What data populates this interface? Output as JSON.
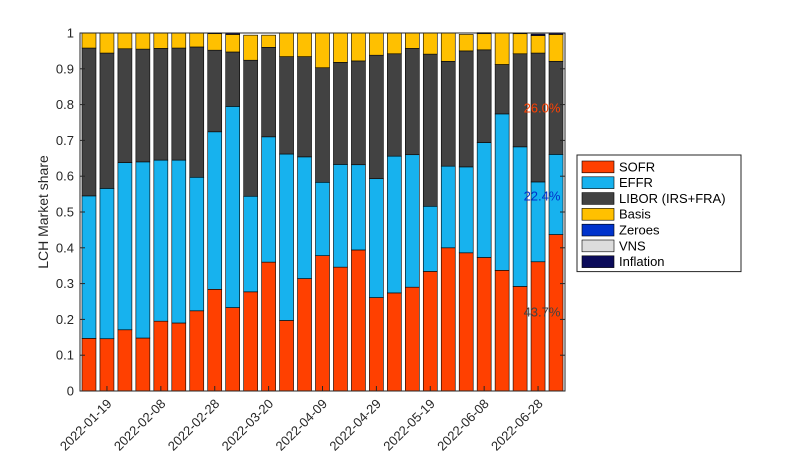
{
  "chart_data": {
    "type": "bar",
    "stacked": true,
    "ylabel": "LCH Market share",
    "ylim": [
      0,
      1
    ],
    "yticks": [
      0,
      0.1,
      0.2,
      0.3,
      0.4,
      0.5,
      0.6,
      0.7,
      0.8,
      0.9,
      1
    ],
    "ytick_labels": [
      "0",
      "0.1",
      "0.2",
      "0.3",
      "0.4",
      "0.5",
      "0.6",
      "0.7",
      "0.8",
      "0.9",
      "1"
    ],
    "xtick_labels": [
      {
        "index": 1,
        "label": "2022-01-19"
      },
      {
        "index": 4,
        "label": "2022-02-08"
      },
      {
        "index": 7,
        "label": "2022-02-28"
      },
      {
        "index": 10,
        "label": "2022-03-20"
      },
      {
        "index": 13,
        "label": "2022-04-09"
      },
      {
        "index": 16,
        "label": "2022-04-29"
      },
      {
        "index": 19,
        "label": "2022-05-19"
      },
      {
        "index": 22,
        "label": "2022-06-08"
      },
      {
        "index": 25,
        "label": "2022-06-28"
      }
    ],
    "bar_count": 27,
    "legend_position": "right",
    "series": [
      {
        "name": "SOFR",
        "color": "#ff4000",
        "values": [
          0.147,
          0.146,
          0.171,
          0.148,
          0.195,
          0.19,
          0.224,
          0.284,
          0.233,
          0.277,
          0.36,
          0.197,
          0.314,
          0.378,
          0.346,
          0.394,
          0.261,
          0.274,
          0.29,
          0.334,
          0.4,
          0.386,
          0.373,
          0.337,
          0.292,
          0.361,
          0.437
        ]
      },
      {
        "name": "EFFR",
        "color": "#17b2ee",
        "values": [
          0.398,
          0.42,
          0.467,
          0.492,
          0.45,
          0.455,
          0.373,
          0.44,
          0.562,
          0.267,
          0.35,
          0.465,
          0.34,
          0.205,
          0.287,
          0.238,
          0.332,
          0.382,
          0.37,
          0.182,
          0.228,
          0.24,
          0.321,
          0.437,
          0.39,
          0.223,
          0.224
        ]
      },
      {
        "name": "LIBOR (IRS+FRA)",
        "color": "#424242",
        "values": [
          0.413,
          0.378,
          0.318,
          0.315,
          0.312,
          0.313,
          0.364,
          0.228,
          0.152,
          0.38,
          0.25,
          0.272,
          0.28,
          0.32,
          0.285,
          0.29,
          0.345,
          0.286,
          0.297,
          0.425,
          0.293,
          0.324,
          0.259,
          0.138,
          0.26,
          0.36,
          0.26
        ]
      },
      {
        "name": "Basis",
        "color": "#ffc000",
        "values": [
          0.042,
          0.056,
          0.044,
          0.045,
          0.043,
          0.042,
          0.039,
          0.046,
          0.049,
          0.07,
          0.034,
          0.066,
          0.066,
          0.097,
          0.082,
          0.078,
          0.062,
          0.058,
          0.043,
          0.059,
          0.079,
          0.046,
          0.045,
          0.088,
          0.056,
          0.049,
          0.075
        ]
      },
      {
        "name": "Zeroes",
        "color": "#0033cc",
        "values": [
          0,
          0,
          0,
          0,
          0,
          0,
          0,
          0,
          0,
          0,
          0,
          0,
          0,
          0,
          0,
          0,
          0,
          0,
          0,
          0,
          0,
          0,
          0,
          0,
          0,
          0,
          0
        ]
      },
      {
        "name": "VNS",
        "color": "#dcdcdc",
        "values": [
          0,
          0,
          0,
          0,
          0,
          0,
          0,
          0,
          0,
          0,
          0,
          0,
          0,
          0,
          0,
          0,
          0,
          0,
          0,
          0,
          0,
          0,
          0,
          0,
          0,
          0,
          0
        ]
      },
      {
        "name": "Inflation",
        "color": "#0b0b5a",
        "values": [
          0,
          0,
          0,
          0,
          0,
          0,
          0,
          0,
          0.004,
          0,
          0,
          0,
          0,
          0,
          0,
          0,
          0,
          0,
          0,
          0,
          0,
          0,
          0.003,
          0,
          0.002,
          0.004,
          0.004
        ]
      }
    ],
    "annotations": [
      {
        "text": "26.0%",
        "y": 0.79,
        "color": "#ff4000"
      },
      {
        "text": "22.4%",
        "y": 0.545,
        "color": "#0033cc"
      },
      {
        "text": "43.7%",
        "y": 0.22,
        "color": "#424242"
      }
    ]
  }
}
